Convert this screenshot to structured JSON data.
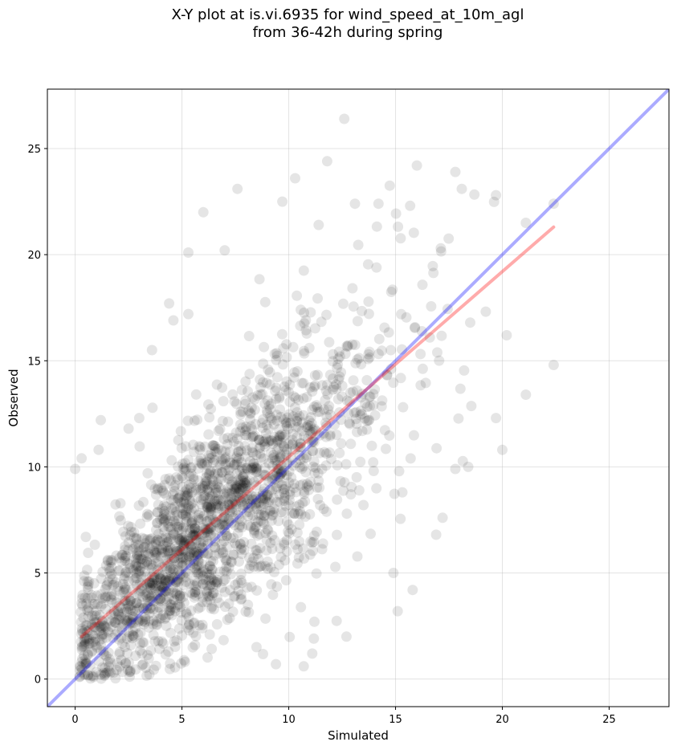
{
  "chart_data": {
    "type": "scatter",
    "title_line1": "X-Y plot at is.vi.6935 for wind_speed_at_10m_agl",
    "title_line2": "from 36-42h during spring",
    "xlabel": "Simulated",
    "ylabel": "Observed",
    "xlim": [
      -1.3,
      27.8
    ],
    "ylim": [
      -1.3,
      27.8
    ],
    "xticks": [
      0,
      5,
      10,
      15,
      20,
      25
    ],
    "yticks": [
      0,
      5,
      10,
      15,
      20,
      25
    ],
    "grid": true,
    "marker_color": "#000000",
    "marker_alpha": 0.1,
    "fit_line": {
      "color": "#ff0000",
      "x": [
        0.3,
        22.4
      ],
      "y": [
        2.0,
        21.3
      ]
    },
    "identity_line": {
      "color": "#0000ff",
      "x": [
        -1.3,
        27.8
      ],
      "y": [
        -1.3,
        27.8
      ]
    },
    "outliers": [
      [
        12.6,
        26.4
      ],
      [
        11.8,
        24.4
      ],
      [
        16.0,
        24.2
      ],
      [
        10.3,
        23.6
      ],
      [
        17.8,
        23.9
      ],
      [
        7.6,
        23.1
      ],
      [
        18.1,
        23.1
      ],
      [
        19.7,
        22.8
      ],
      [
        22.4,
        22.4
      ],
      [
        13.1,
        22.4
      ],
      [
        14.2,
        22.4
      ],
      [
        9.7,
        22.5
      ],
      [
        6.0,
        22.0
      ],
      [
        21.1,
        21.5
      ],
      [
        11.4,
        21.4
      ],
      [
        5.3,
        20.1
      ],
      [
        7.0,
        20.2
      ],
      [
        20.2,
        16.2
      ],
      [
        22.4,
        14.8
      ],
      [
        21.1,
        13.4
      ],
      [
        20.0,
        10.8
      ],
      [
        19.7,
        12.3
      ],
      [
        18.4,
        10.0
      ],
      [
        17.8,
        9.9
      ],
      [
        17.2,
        7.6
      ],
      [
        15.1,
        3.2
      ],
      [
        16.9,
        6.8
      ],
      [
        15.8,
        4.2
      ],
      [
        14.9,
        5.0
      ],
      [
        12.7,
        2.0
      ],
      [
        11.1,
        1.2
      ],
      [
        10.7,
        0.6
      ],
      [
        9.4,
        0.7
      ],
      [
        11.2,
        2.7
      ],
      [
        0.0,
        9.9
      ],
      [
        0.3,
        10.4
      ],
      [
        1.1,
        10.8
      ],
      [
        2.5,
        11.8
      ],
      [
        3.6,
        15.5
      ],
      [
        4.4,
        17.7
      ],
      [
        4.6,
        16.9
      ],
      [
        5.3,
        17.2
      ],
      [
        3.0,
        12.3
      ],
      [
        1.2,
        12.2
      ],
      [
        0.5,
        6.7
      ]
    ],
    "num_points": 2000,
    "point_count_note": ""
  }
}
